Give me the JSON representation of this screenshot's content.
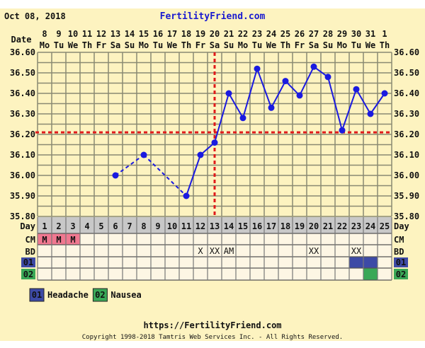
{
  "header": {
    "date": "Oct 08, 2018",
    "site": "FertilityFriend.com"
  },
  "labels": {
    "date_row": "Date",
    "day_row": "Day",
    "cm_row": "CM",
    "bd_row": "BD"
  },
  "footer": {
    "url": "https://FertilityFriend.com",
    "copyright": "Copyright 1998-2018 Tamtris Web Services Inc. - All Rights Reserved."
  },
  "colors": {
    "background": "#fdf3c0",
    "grid": "#8a8a72",
    "line": "#1a1ae0",
    "coverline": "#e01a1a",
    "day_row": "#c8c8c8",
    "cm_menstrual": "#f07890",
    "cell": "#fdf6e4",
    "symptom_01": "#3d4aa6",
    "symptom_02": "#3aa857"
  },
  "chart_data": {
    "type": "line",
    "ylim": [
      35.8,
      36.6
    ],
    "yticks": [
      "36.60",
      "36.50",
      "36.40",
      "36.30",
      "36.20",
      "36.10",
      "36.00",
      "35.90",
      "35.80"
    ],
    "days": [
      "1",
      "2",
      "3",
      "4",
      "5",
      "6",
      "7",
      "8",
      "9",
      "10",
      "11",
      "12",
      "13",
      "14",
      "15",
      "16",
      "17",
      "18",
      "19",
      "20",
      "21",
      "22",
      "23",
      "24",
      "25"
    ],
    "dates": [
      "8",
      "9",
      "10",
      "11",
      "12",
      "13",
      "14",
      "15",
      "16",
      "17",
      "18",
      "19",
      "20",
      "21",
      "22",
      "23",
      "24",
      "25",
      "26",
      "27",
      "28",
      "29",
      "30",
      "31",
      "1"
    ],
    "weekdays": [
      "Mo",
      "Tu",
      "We",
      "Th",
      "Fr",
      "Sa",
      "Su",
      "Mo",
      "Tu",
      "We",
      "Th",
      "Fr",
      "Sa",
      "Su",
      "Mo",
      "Tu",
      "We",
      "Th",
      "Fr",
      "Sa",
      "Su",
      "Mo",
      "Tu",
      "We",
      "Th"
    ],
    "temps": [
      null,
      null,
      null,
      null,
      null,
      36.0,
      null,
      36.1,
      null,
      null,
      35.9,
      36.1,
      36.16,
      36.4,
      36.28,
      36.52,
      36.33,
      36.46,
      36.39,
      36.53,
      36.48,
      36.22,
      36.42,
      36.3,
      36.4
    ],
    "coverline": 36.21,
    "ovulation_day": 13,
    "cm": [
      "M",
      "M",
      "M",
      "",
      "",
      "",
      "",
      "",
      "",
      "",
      "",
      "",
      "",
      "",
      "",
      "",
      "",
      "",
      "",
      "",
      "",
      "",
      "",
      "",
      ""
    ],
    "bd": [
      "",
      "",
      "",
      "",
      "",
      "",
      "",
      "",
      "",
      "",
      "",
      "X",
      "XX",
      "AM",
      "",
      "",
      "",
      "",
      "",
      "XX",
      "",
      "",
      "XX",
      "",
      ""
    ],
    "symptoms": [
      {
        "code": "01",
        "name": "Headache",
        "days": [
          23,
          24
        ]
      },
      {
        "code": "02",
        "name": "Nausea",
        "days": [
          24
        ]
      }
    ]
  }
}
